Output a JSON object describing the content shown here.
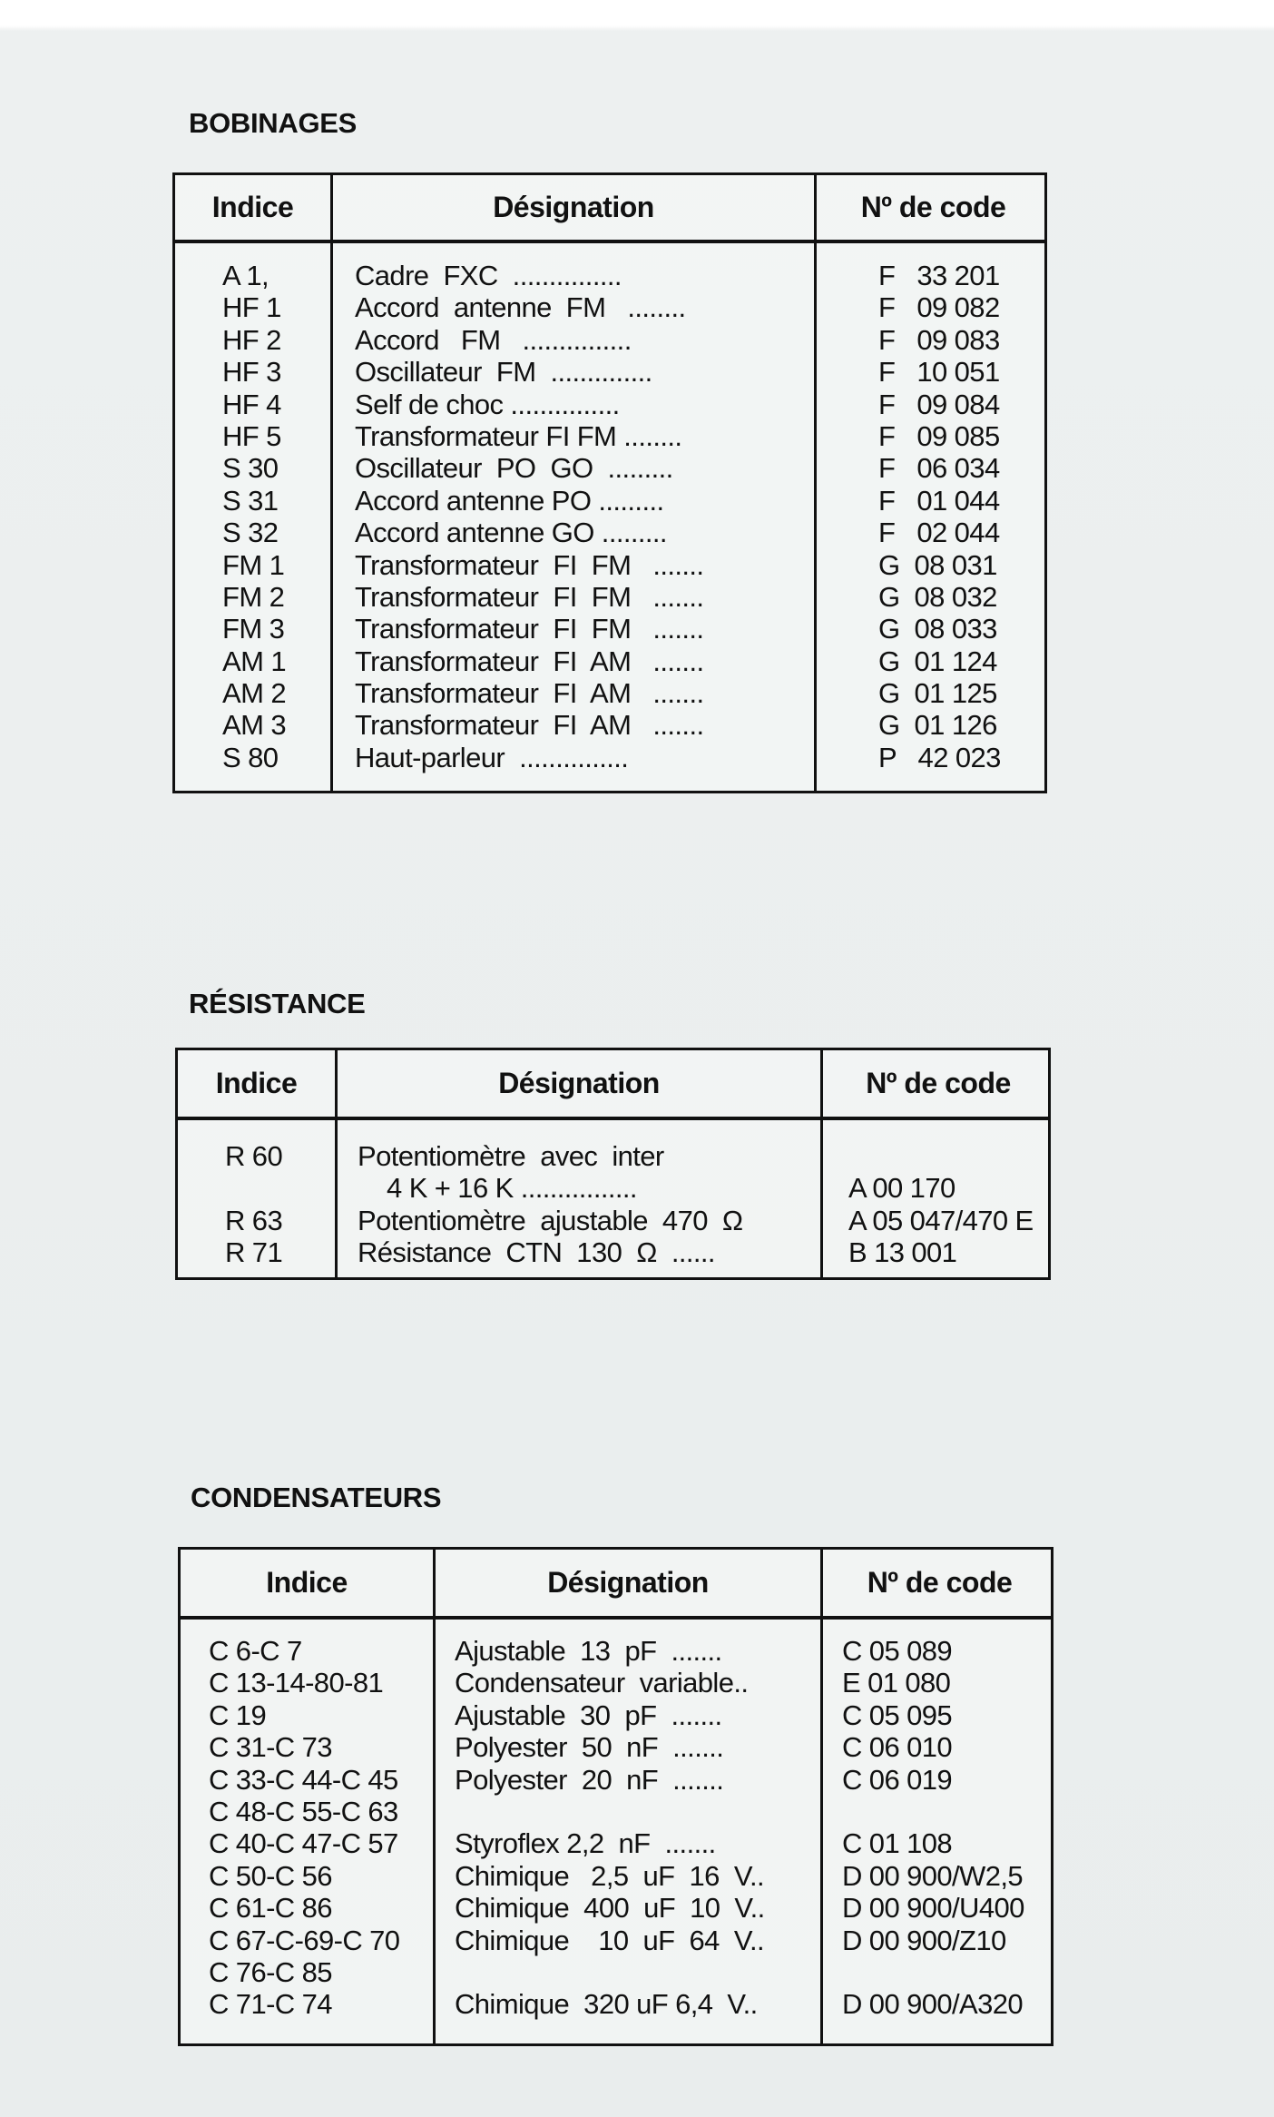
{
  "sections": [
    {
      "title": "BOBINAGES",
      "headers": [
        "Indice",
        "Désignation",
        "Nº de code"
      ],
      "rows": [
        [
          "A 1,",
          "Cadre  FXC  ...............",
          "F   33 201"
        ],
        [
          "HF 1",
          "Accord  antenne  FM   ........",
          "F   09 082"
        ],
        [
          "HF 2",
          "Accord   FM   ...............",
          "F   09 083"
        ],
        [
          "HF 3",
          "Oscillateur  FM  ..............",
          "F   10 051"
        ],
        [
          "HF 4",
          "Self de choc ...............",
          "F   09 084"
        ],
        [
          "HF 5",
          "Transformateur FI FM ........",
          "F   09 085"
        ],
        [
          "S 30",
          "Oscillateur  PO  GO  .........",
          "F   06 034"
        ],
        [
          "S 31",
          "Accord antenne PO .........",
          "F   01 044"
        ],
        [
          "S 32",
          "Accord antenne GO .........",
          "F   02 044"
        ],
        [
          "FM 1",
          "Transformateur  FI  FM   .......",
          "G  08 031"
        ],
        [
          "FM 2",
          "Transformateur  FI  FM   .......",
          "G  08 032"
        ],
        [
          "FM 3",
          "Transformateur  FI  FM   .......",
          "G  08 033"
        ],
        [
          "AM 1",
          "Transformateur  FI  AM   .......",
          "G  01 124"
        ],
        [
          "AM 2",
          "Transformateur  FI  AM   .......",
          "G  01 125"
        ],
        [
          "AM 3",
          "Transformateur  FI  AM   .......",
          "G  01 126"
        ],
        [
          "S 80",
          "Haut-parleur  ...............",
          "P   42 023"
        ]
      ]
    },
    {
      "title": "RÉSISTANCE",
      "headers": [
        "Indice",
        "Désignation",
        "Nº de code"
      ],
      "rows": [
        [
          "R 60",
          "Potentiomètre  avec  inter",
          ""
        ],
        [
          "",
          "    4 K + 16 K ................",
          "A 00 170"
        ],
        [
          "R 63",
          "Potentiomètre  ajustable  470  Ω",
          "A 05 047/470 E"
        ],
        [
          "R 71",
          "Résistance  CTN  130  Ω  ......",
          "B 13 001"
        ]
      ]
    },
    {
      "title": "CONDENSATEURS",
      "headers": [
        "Indice",
        "Désignation",
        "Nº de code"
      ],
      "rows": [
        [
          "C 6-C 7",
          "Ajustable  13  pF  .......",
          "C 05 089"
        ],
        [
          "C 13-14-80-81",
          "Condensateur  variable..",
          "E 01 080"
        ],
        [
          "C 19",
          "Ajustable  30  pF  .......",
          "C 05 095"
        ],
        [
          "C 31-C 73",
          "Polyester  50  nF  .......",
          "C 06 010"
        ],
        [
          "C 33-C 44-C 45",
          "Polyester  20  nF  .......",
          "C 06 019"
        ],
        [
          "C 48-C 55-C 63",
          "",
          ""
        ],
        [
          "C 40-C 47-C 57",
          "Styroflex 2,2  nF  .......",
          "C 01 108"
        ],
        [
          "C 50-C 56",
          "Chimique   2,5  uF  16  V..",
          "D 00 900/W2,5"
        ],
        [
          "C 61-C 86",
          "Chimique  400  uF  10  V..",
          "D 00 900/U400"
        ],
        [
          "C 67-C-69-C 70",
          "Chimique    10  uF  64  V..",
          "D 00 900/Z10"
        ],
        [
          "C 76-C 85",
          "",
          ""
        ],
        [
          "C 71-C 74",
          "Chimique  320 uF 6,4  V..",
          "D 00 900/A320"
        ]
      ]
    }
  ]
}
